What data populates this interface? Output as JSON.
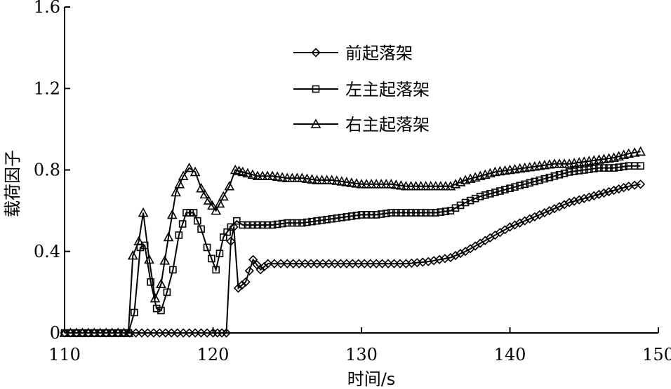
{
  "chart_data": {
    "type": "line",
    "xlabel": "时间/s",
    "ylabel": "载荷因子",
    "xlim": [
      110,
      150
    ],
    "ylim": [
      0,
      1.6
    ],
    "x_ticks": [
      "110",
      "120",
      "130",
      "140",
      "150"
    ],
    "y_ticks": [
      "0",
      "0.4",
      "0.8",
      "1.2",
      "1.6"
    ],
    "legend_position": "top-center",
    "grid": false,
    "series": [
      {
        "name": "前起落架",
        "marker": "diamond",
        "points": [
          [
            110,
            0
          ],
          [
            112,
            0
          ],
          [
            114,
            0
          ],
          [
            116,
            0
          ],
          [
            118,
            0
          ],
          [
            120,
            0
          ],
          [
            120.9,
            0
          ],
          [
            121.2,
            0.45
          ],
          [
            121.4,
            0.52
          ],
          [
            121.7,
            0.22
          ],
          [
            122.2,
            0.25
          ],
          [
            122.7,
            0.36
          ],
          [
            123.2,
            0.31
          ],
          [
            123.7,
            0.34
          ],
          [
            125,
            0.34
          ],
          [
            127,
            0.34
          ],
          [
            129,
            0.34
          ],
          [
            131,
            0.34
          ],
          [
            133,
            0.34
          ],
          [
            134.5,
            0.35
          ],
          [
            136,
            0.37
          ],
          [
            137,
            0.4
          ],
          [
            138,
            0.44
          ],
          [
            139,
            0.48
          ],
          [
            140,
            0.52
          ],
          [
            141,
            0.55
          ],
          [
            142,
            0.58
          ],
          [
            143,
            0.61
          ],
          [
            144,
            0.64
          ],
          [
            145,
            0.66
          ],
          [
            146,
            0.68
          ],
          [
            147,
            0.7
          ],
          [
            148,
            0.72
          ],
          [
            148.8,
            0.73
          ]
        ]
      },
      {
        "name": "左主起落架",
        "marker": "square",
        "points": [
          [
            110,
            0
          ],
          [
            112,
            0
          ],
          [
            114,
            0
          ],
          [
            114.3,
            0
          ],
          [
            114.7,
            0.1
          ],
          [
            115.1,
            0.42
          ],
          [
            115.4,
            0.43
          ],
          [
            115.8,
            0.25
          ],
          [
            116.2,
            0.12
          ],
          [
            116.5,
            0.11
          ],
          [
            116.9,
            0.2
          ],
          [
            117.3,
            0.31
          ],
          [
            117.7,
            0.48
          ],
          [
            118.2,
            0.59
          ],
          [
            118.7,
            0.59
          ],
          [
            119.2,
            0.51
          ],
          [
            119.6,
            0.42
          ],
          [
            120.2,
            0.31
          ],
          [
            120.7,
            0.47
          ],
          [
            121.2,
            0.52
          ],
          [
            121.6,
            0.55
          ],
          [
            122,
            0.53
          ],
          [
            123,
            0.53
          ],
          [
            124,
            0.53
          ],
          [
            125,
            0.54
          ],
          [
            126,
            0.54
          ],
          [
            127,
            0.55
          ],
          [
            128,
            0.56
          ],
          [
            129,
            0.57
          ],
          [
            130,
            0.58
          ],
          [
            131,
            0.58
          ],
          [
            132,
            0.59
          ],
          [
            133,
            0.59
          ],
          [
            134,
            0.59
          ],
          [
            135,
            0.59
          ],
          [
            136,
            0.6
          ],
          [
            137,
            0.64
          ],
          [
            138,
            0.67
          ],
          [
            139,
            0.69
          ],
          [
            140,
            0.71
          ],
          [
            141,
            0.73
          ],
          [
            142,
            0.75
          ],
          [
            143,
            0.77
          ],
          [
            144,
            0.79
          ],
          [
            145,
            0.8
          ],
          [
            146,
            0.81
          ],
          [
            147,
            0.81
          ],
          [
            148,
            0.82
          ],
          [
            148.8,
            0.82
          ]
        ]
      },
      {
        "name": "右主起落架",
        "marker": "triangle",
        "points": [
          [
            110,
            0
          ],
          [
            112,
            0
          ],
          [
            114,
            0
          ],
          [
            114.3,
            0
          ],
          [
            114.6,
            0.38
          ],
          [
            115,
            0.45
          ],
          [
            115.3,
            0.59
          ],
          [
            115.7,
            0.36
          ],
          [
            116.1,
            0.17
          ],
          [
            116.5,
            0.24
          ],
          [
            117,
            0.47
          ],
          [
            117.5,
            0.69
          ],
          [
            118,
            0.77
          ],
          [
            118.4,
            0.81
          ],
          [
            118.8,
            0.79
          ],
          [
            119.2,
            0.71
          ],
          [
            119.7,
            0.65
          ],
          [
            120.2,
            0.6
          ],
          [
            120.7,
            0.67
          ],
          [
            121.1,
            0.72
          ],
          [
            121.5,
            0.8
          ],
          [
            122,
            0.79
          ],
          [
            123,
            0.77
          ],
          [
            124,
            0.77
          ],
          [
            125,
            0.76
          ],
          [
            126,
            0.76
          ],
          [
            127,
            0.75
          ],
          [
            128,
            0.75
          ],
          [
            129,
            0.74
          ],
          [
            130,
            0.73
          ],
          [
            131,
            0.73
          ],
          [
            132,
            0.73
          ],
          [
            133,
            0.72
          ],
          [
            134,
            0.72
          ],
          [
            135,
            0.72
          ],
          [
            136,
            0.72
          ],
          [
            137,
            0.75
          ],
          [
            138,
            0.77
          ],
          [
            139,
            0.79
          ],
          [
            140,
            0.8
          ],
          [
            141,
            0.81
          ],
          [
            142,
            0.82
          ],
          [
            143,
            0.83
          ],
          [
            144,
            0.83
          ],
          [
            145,
            0.84
          ],
          [
            146,
            0.85
          ],
          [
            147,
            0.86
          ],
          [
            148,
            0.88
          ],
          [
            148.8,
            0.89
          ]
        ]
      }
    ]
  }
}
